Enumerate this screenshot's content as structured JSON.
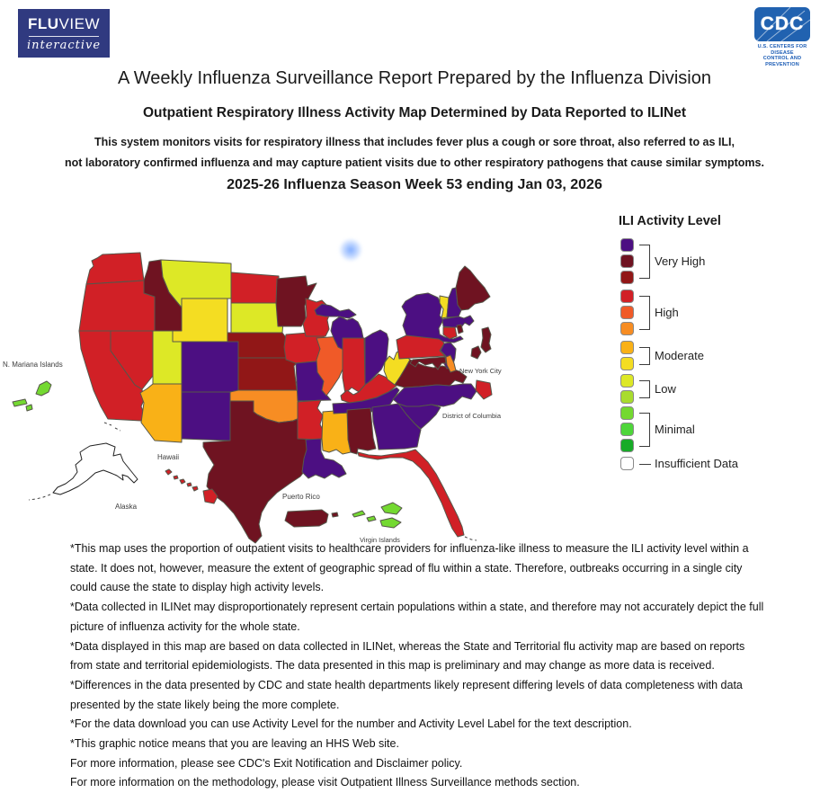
{
  "header": {
    "fluview_logo": {
      "brand_bold": "FLU",
      "brand_rest": "VIEW",
      "brand_sub": "interactive"
    },
    "cdc_logo": {
      "acronym": "CDC",
      "caption_line1": "U.S. CENTERS FOR DISEASE",
      "caption_line2": "CONTROL AND PREVENTION"
    },
    "title": "A Weekly Influenza Surveillance Report Prepared by the Influenza Division",
    "subtitle": "Outpatient Respiratory Illness Activity Map Determined by Data Reported to ILINet",
    "description_line1": "This system monitors visits for respiratory illness that includes fever plus a cough or sore throat, also referred to as ILI,",
    "description_line2": "not laboratory confirmed influenza and may capture patient visits due to other respiratory pathogens that cause similar symptoms.",
    "season_heading": "2025-26 Influenza Season Week 53 ending Jan 03, 2026"
  },
  "legend": {
    "title": "ILI Activity Level",
    "groups": [
      {
        "label": "Very High",
        "levels": [
          "very_high_1",
          "very_high_2",
          "very_high_3"
        ]
      },
      {
        "label": "High",
        "levels": [
          "high_1",
          "high_2",
          "high_3"
        ]
      },
      {
        "label": "Moderate",
        "levels": [
          "moderate_1",
          "moderate_2"
        ]
      },
      {
        "label": "Low",
        "levels": [
          "low_1",
          "low_2"
        ]
      },
      {
        "label": "Minimal",
        "levels": [
          "minimal_1",
          "minimal_2",
          "minimal_3"
        ]
      }
    ],
    "insufficient_label": "Insufficient Data",
    "insufficient_level": "insufficient"
  },
  "palette": {
    "very_high_1": "#4c0f82",
    "very_high_2": "#6f1321",
    "very_high_3": "#911717",
    "high_1": "#d12026",
    "high_2": "#f05a28",
    "high_3": "#f78d23",
    "moderate_1": "#f9b117",
    "moderate_2": "#f4dd22",
    "low_1": "#dde826",
    "low_2": "#a9dc2e",
    "minimal_1": "#74d931",
    "minimal_2": "#4ed63a",
    "minimal_3": "#17ab27",
    "insufficient": "#ffffff"
  },
  "map": {
    "labels": {
      "n_mariana": "N. Mariana Islands",
      "hawaii": "Hawaii",
      "alaska": "Alaska",
      "puerto_rico": "Puerto Rico",
      "virgin_islands": "Virgin Islands",
      "new_york_city": "New York City",
      "district_of_columbia": "District of Columbia"
    },
    "states": {
      "WA": {
        "name": "Washington",
        "level": "high_1"
      },
      "OR": {
        "name": "Oregon",
        "level": "high_1"
      },
      "CA": {
        "name": "California",
        "level": "high_1"
      },
      "NV": {
        "name": "Nevada",
        "level": "high_1"
      },
      "ID": {
        "name": "Idaho",
        "level": "very_high_2"
      },
      "MT": {
        "name": "Montana",
        "level": "low_1"
      },
      "WY": {
        "name": "Wyoming",
        "level": "moderate_2"
      },
      "UT": {
        "name": "Utah",
        "level": "low_1"
      },
      "AZ": {
        "name": "Arizona",
        "level": "moderate_1"
      },
      "CO": {
        "name": "Colorado",
        "level": "very_high_1"
      },
      "NM": {
        "name": "New Mexico",
        "level": "very_high_1"
      },
      "ND": {
        "name": "North Dakota",
        "level": "high_1"
      },
      "SD": {
        "name": "South Dakota",
        "level": "low_1"
      },
      "NE": {
        "name": "Nebraska",
        "level": "very_high_3"
      },
      "KS": {
        "name": "Kansas",
        "level": "very_high_3"
      },
      "OK": {
        "name": "Oklahoma",
        "level": "high_3"
      },
      "TX": {
        "name": "Texas",
        "level": "very_high_2"
      },
      "MN": {
        "name": "Minnesota",
        "level": "very_high_2"
      },
      "IA": {
        "name": "Iowa",
        "level": "high_1"
      },
      "MO": {
        "name": "Missouri",
        "level": "very_high_1"
      },
      "AR": {
        "name": "Arkansas",
        "level": "high_1"
      },
      "LA": {
        "name": "Louisiana",
        "level": "very_high_1"
      },
      "WI": {
        "name": "Wisconsin",
        "level": "high_1"
      },
      "IL": {
        "name": "Illinois",
        "level": "high_2"
      },
      "MS": {
        "name": "Mississippi",
        "level": "moderate_1"
      },
      "MI": {
        "name": "Michigan",
        "level": "very_high_1"
      },
      "IN": {
        "name": "Indiana",
        "level": "high_1"
      },
      "OH": {
        "name": "Ohio",
        "level": "very_high_1"
      },
      "KY": {
        "name": "Kentucky",
        "level": "high_1"
      },
      "TN": {
        "name": "Tennessee",
        "level": "very_high_1"
      },
      "WV": {
        "name": "West Virginia",
        "level": "moderate_2"
      },
      "VA": {
        "name": "Virginia",
        "level": "very_high_2"
      },
      "NC": {
        "name": "North Carolina",
        "level": "very_high_1"
      },
      "SC": {
        "name": "South Carolina",
        "level": "very_high_1"
      },
      "GA": {
        "name": "Georgia",
        "level": "very_high_1"
      },
      "AL": {
        "name": "Alabama",
        "level": "very_high_2"
      },
      "FL": {
        "name": "Florida",
        "level": "high_1"
      },
      "PA": {
        "name": "Pennsylvania",
        "level": "high_1"
      },
      "NY": {
        "name": "New York",
        "level": "very_high_1"
      },
      "NJ": {
        "name": "New Jersey",
        "level": "very_high_1"
      },
      "MD": {
        "name": "Maryland",
        "level": "very_high_2"
      },
      "DE": {
        "name": "Delaware",
        "level": "high_3"
      },
      "ME": {
        "name": "Maine",
        "level": "very_high_2"
      },
      "NH": {
        "name": "New Hampshire",
        "level": "very_high_1"
      },
      "VT": {
        "name": "Vermont",
        "level": "moderate_2"
      },
      "MA": {
        "name": "Massachusetts",
        "level": "very_high_1"
      },
      "CT": {
        "name": "Connecticut",
        "level": "high_1"
      },
      "RI": {
        "name": "Rhode Island",
        "level": "very_high_2"
      },
      "AK": {
        "name": "Alaska",
        "level": "insufficient"
      },
      "HI": {
        "name": "Hawaii",
        "level": "high_1"
      },
      "PR": {
        "name": "Puerto Rico",
        "level": "very_high_2"
      },
      "VI": {
        "name": "Virgin Islands",
        "level": "minimal_1"
      },
      "MP": {
        "name": "N. Mariana Islands",
        "level": "minimal_1"
      },
      "NYC": {
        "name": "New York City",
        "level": "very_high_2"
      },
      "DC": {
        "name": "District of Columbia",
        "level": "high_1"
      }
    }
  },
  "footnotes": [
    "*This map uses the proportion of outpatient visits to healthcare providers for influenza-like illness to measure the ILI activity level within a state. It does not, however, measure the extent of geographic spread of flu within a state. Therefore, outbreaks occurring in a single city could cause the state to display high activity levels.",
    "*Data collected in ILINet may disproportionately represent certain populations within a state, and therefore may not accurately depict the full picture of influenza activity for the whole state.",
    "*Data displayed in this map are based on data collected in ILINet, whereas the State and Territorial flu activity map are based on reports from state and territorial epidemiologists. The data presented in this map is preliminary and may change as more data is received.",
    "*Differences in the data presented by CDC and state health departments likely represent differing levels of data completeness with data presented by the state likely being the more complete.",
    "*For the data download you can use Activity Level for the number and Activity Level Label for the text description.",
    "*This graphic notice means that you are leaving an HHS Web site.",
    "For more information, please see CDC's Exit Notification and Disclaimer policy.",
    "For more information on the methodology, please visit Outpatient Illness Surveillance methods section."
  ]
}
